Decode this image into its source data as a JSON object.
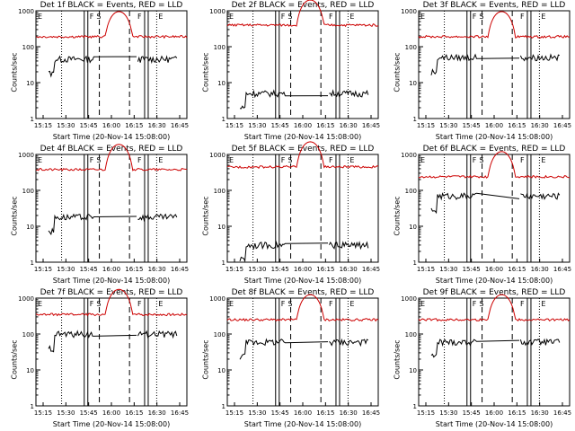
{
  "chart_data": [
    {
      "type": "line",
      "title": "Det 1f BLACK = Events, RED = LLD",
      "xlabel": "Start Time (20-Nov-14 15:08:00)",
      "ylabel": "Counts/sec",
      "yscale": "log",
      "ylim": [
        1,
        1000
      ],
      "yticks": [
        "1",
        "10",
        "100",
        "1000"
      ],
      "xticks": [
        "15:15",
        "15:30",
        "15:45",
        "16:00",
        "16:15",
        "16:30",
        "16:45"
      ],
      "markers": [
        "E",
        "F",
        "S",
        "F",
        "E"
      ],
      "series": [
        {
          "name": "BLACK = Events",
          "color": "#000000",
          "level": 45
        },
        {
          "name": "RED = LLD",
          "color": "#cc0000",
          "level": 190
        }
      ]
    },
    {
      "type": "line",
      "title": "Det 2f BLACK = Events, RED = LLD",
      "xlabel": "Start Time (20-Nov-14 15:08:00)",
      "ylabel": "Counts/sec",
      "yscale": "log",
      "ylim": [
        1,
        1000
      ],
      "yticks": [
        "1",
        "10",
        "100",
        "1000"
      ],
      "xticks": [
        "15:15",
        "15:30",
        "15:45",
        "16:00",
        "16:15",
        "16:30",
        "16:45"
      ],
      "markers": [
        "E",
        "F",
        "S",
        "F",
        "E"
      ],
      "series": [
        {
          "name": "BLACK = Events",
          "color": "#000000",
          "level": 5
        },
        {
          "name": "RED = LLD",
          "color": "#cc0000",
          "level": 400
        }
      ]
    },
    {
      "type": "line",
      "title": "Det 3f BLACK = Events, RED = LLD",
      "xlabel": "Start Time (20-Nov-14 15:08:00)",
      "ylabel": "Counts/sec",
      "yscale": "log",
      "ylim": [
        1,
        1000
      ],
      "yticks": [
        "1",
        "10",
        "100",
        "1000"
      ],
      "xticks": [
        "15:15",
        "15:30",
        "15:45",
        "16:00",
        "16:15",
        "16:30",
        "16:45"
      ],
      "markers": [
        "E",
        "F",
        "S",
        "F",
        "E"
      ],
      "series": [
        {
          "name": "BLACK = Events",
          "color": "#000000",
          "level": 50
        },
        {
          "name": "RED = LLD",
          "color": "#cc0000",
          "level": 190
        }
      ]
    },
    {
      "type": "line",
      "title": "Det 4f BLACK = Events, RED = LLD",
      "xlabel": "Start Time (20-Nov-14 15:08:00)",
      "ylabel": "Counts/sec",
      "yscale": "log",
      "ylim": [
        1,
        1000
      ],
      "yticks": [
        "1",
        "10",
        "100",
        "1000"
      ],
      "xticks": [
        "15:15",
        "15:30",
        "15:45",
        "16:00",
        "16:15",
        "16:30",
        "16:45"
      ],
      "markers": [
        "E",
        "F",
        "S",
        "F",
        "E"
      ],
      "series": [
        {
          "name": "BLACK = Events",
          "color": "#000000",
          "level": 18
        },
        {
          "name": "RED = LLD",
          "color": "#cc0000",
          "level": 380
        }
      ]
    },
    {
      "type": "line",
      "title": "Det 5f BLACK = Events, RED = LLD",
      "xlabel": "Start Time (20-Nov-14 15:08:00)",
      "ylabel": "Counts/sec",
      "yscale": "log",
      "ylim": [
        1,
        1000
      ],
      "yticks": [
        "1",
        "10",
        "100",
        "1000"
      ],
      "xticks": [
        "15:15",
        "15:30",
        "15:45",
        "16:00",
        "16:15",
        "16:30",
        "16:45"
      ],
      "markers": [
        "E",
        "F",
        "S",
        "F",
        "E"
      ],
      "series": [
        {
          "name": "BLACK = Events",
          "color": "#000000",
          "level": 3
        },
        {
          "name": "RED = LLD",
          "color": "#cc0000",
          "level": 450
        }
      ]
    },
    {
      "type": "line",
      "title": "Det 6f BLACK = Events, RED = LLD",
      "xlabel": "Start Time (20-Nov-14 15:08:00)",
      "ylabel": "Counts/sec",
      "yscale": "log",
      "ylim": [
        1,
        1000
      ],
      "yticks": [
        "1",
        "10",
        "100",
        "1000"
      ],
      "xticks": [
        "15:15",
        "15:30",
        "15:45",
        "16:00",
        "16:15",
        "16:30",
        "16:45"
      ],
      "markers": [
        "E",
        "F",
        "S",
        "F",
        "E"
      ],
      "series": [
        {
          "name": "BLACK = Events",
          "color": "#000000",
          "level": 70
        },
        {
          "name": "RED = LLD",
          "color": "#cc0000",
          "level": 240
        }
      ]
    },
    {
      "type": "line",
      "title": "Det 7f BLACK = Events, RED = LLD",
      "xlabel": "Start Time (20-Nov-14 15:08:00)",
      "ylabel": "Counts/sec",
      "yscale": "log",
      "ylim": [
        1,
        1000
      ],
      "yticks": [
        "1",
        "10",
        "100",
        "1000"
      ],
      "xticks": [
        "15:15",
        "15:30",
        "15:45",
        "16:00",
        "16:15",
        "16:30",
        "16:45"
      ],
      "markers": [
        "E",
        "F",
        "S",
        "F",
        "E"
      ],
      "series": [
        {
          "name": "BLACK = Events",
          "color": "#000000",
          "level": 100
        },
        {
          "name": "RED = LLD",
          "color": "#cc0000",
          "level": 350
        }
      ]
    },
    {
      "type": "line",
      "title": "Det 8f BLACK = Events, RED = LLD",
      "xlabel": "Start Time (20-Nov-14 15:08:00)",
      "ylabel": "Counts/sec",
      "yscale": "log",
      "ylim": [
        1,
        1000
      ],
      "yticks": [
        "1",
        "10",
        "100",
        "1000"
      ],
      "xticks": [
        "15:15",
        "15:30",
        "15:45",
        "16:00",
        "16:15",
        "16:30",
        "16:45"
      ],
      "markers": [
        "E",
        "F",
        "S",
        "F",
        "E"
      ],
      "series": [
        {
          "name": "BLACK = Events",
          "color": "#000000",
          "level": 60
        },
        {
          "name": "RED = LLD",
          "color": "#cc0000",
          "level": 250
        }
      ]
    },
    {
      "type": "line",
      "title": "Det 9f BLACK = Events, RED = LLD",
      "xlabel": "Start Time (20-Nov-14 15:08:00)",
      "ylabel": "Counts/sec",
      "yscale": "log",
      "ylim": [
        1,
        1000
      ],
      "yticks": [
        "1",
        "10",
        "100",
        "1000"
      ],
      "xticks": [
        "15:15",
        "15:30",
        "15:45",
        "16:00",
        "16:15",
        "16:30",
        "16:45"
      ],
      "markers": [
        "E",
        "F",
        "S",
        "F",
        "E"
      ],
      "series": [
        {
          "name": "BLACK = Events",
          "color": "#000000",
          "level": 60
        },
        {
          "name": "RED = LLD",
          "color": "#cc0000",
          "level": 250
        }
      ]
    }
  ]
}
